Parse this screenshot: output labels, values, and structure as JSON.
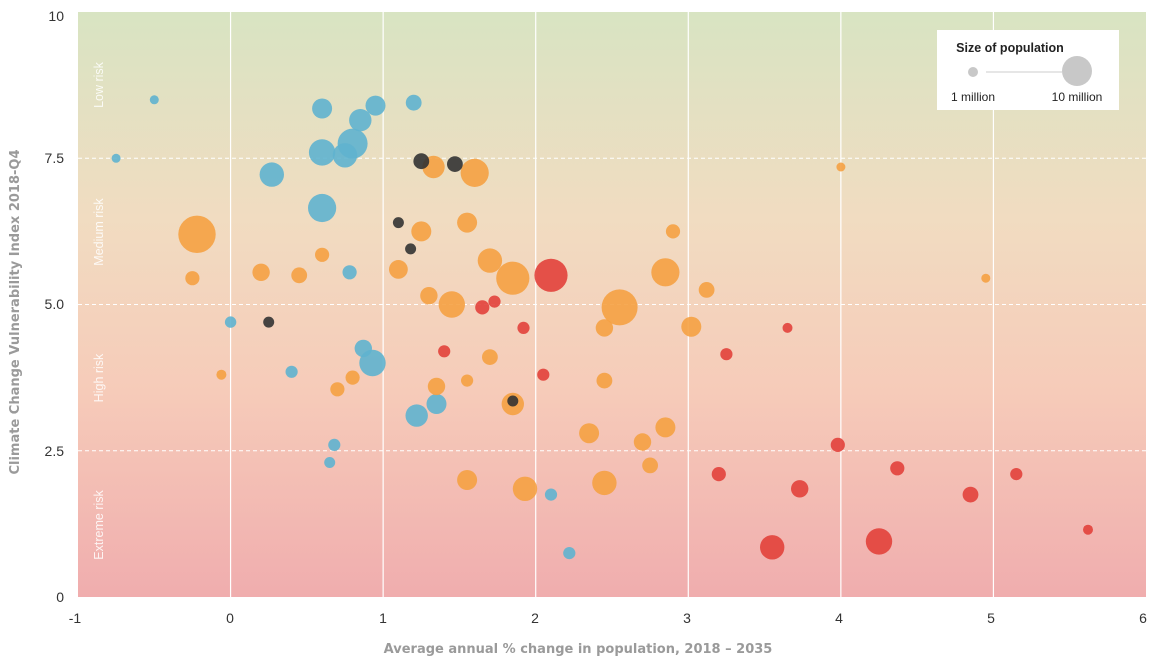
{
  "chart_data": {
    "type": "scatter",
    "title": "",
    "xlabel": "Average annual % change in population, 2018 – 2035",
    "ylabel": "Climate Change Vulnerability Index 2018-Q4",
    "xlim": [
      -1,
      6
    ],
    "ylim": [
      0,
      10
    ],
    "x_ticks": [
      "-1",
      "0",
      "1",
      "2",
      "3",
      "4",
      "5",
      "6"
    ],
    "y_ticks": [
      "0",
      "2.5",
      "5.0",
      "7.5",
      "10"
    ],
    "grid": true,
    "risk_bands": [
      {
        "label": "Low risk",
        "from": 7.5,
        "to": 10
      },
      {
        "label": "Medium risk",
        "from": 5.0,
        "to": 7.5
      },
      {
        "label": "High risk",
        "from": 2.5,
        "to": 5.0
      },
      {
        "label": "Extreme risk",
        "from": 0,
        "to": 2.5
      }
    ],
    "background_gradient": [
      "#d8e4c2",
      "#f1dcc1",
      "#f6cbb9",
      "#f0adae"
    ],
    "legend": {
      "title": "Size of population",
      "placement": "top-right",
      "items": [
        {
          "label": "1 million",
          "population_millions": 1
        },
        {
          "label": "10 million",
          "population_millions": 10
        }
      ]
    },
    "series_colors": {
      "blue": "#5fb2cf",
      "orange": "#f5a142",
      "red": "#e2413b",
      "black": "#333333"
    },
    "points": [
      {
        "x": -0.22,
        "y": 6.2,
        "pop": 14,
        "c": "orange"
      },
      {
        "x": -0.25,
        "y": 5.45,
        "pop": 2,
        "c": "orange"
      },
      {
        "x": 0.0,
        "y": 4.7,
        "pop": 1.3,
        "c": "blue"
      },
      {
        "x": -0.06,
        "y": 3.8,
        "pop": 1,
        "c": "orange"
      },
      {
        "x": 0.27,
        "y": 7.22,
        "pop": 6,
        "c": "blue"
      },
      {
        "x": 0.6,
        "y": 8.35,
        "pop": 4,
        "c": "blue"
      },
      {
        "x": 0.6,
        "y": 7.6,
        "pop": 7,
        "c": "blue"
      },
      {
        "x": 0.75,
        "y": 7.55,
        "pop": 6,
        "c": "blue"
      },
      {
        "x": 0.8,
        "y": 7.75,
        "pop": 9,
        "c": "blue"
      },
      {
        "x": 0.6,
        "y": 6.65,
        "pop": 8,
        "c": "blue"
      },
      {
        "x": 0.85,
        "y": 8.15,
        "pop": 5,
        "c": "blue"
      },
      {
        "x": 0.95,
        "y": 8.4,
        "pop": 4,
        "c": "blue"
      },
      {
        "x": 1.2,
        "y": 8.45,
        "pop": 2.5,
        "c": "blue"
      },
      {
        "x": 0.2,
        "y": 5.55,
        "pop": 3,
        "c": "orange"
      },
      {
        "x": 0.45,
        "y": 5.5,
        "pop": 2.5,
        "c": "orange"
      },
      {
        "x": 0.6,
        "y": 5.85,
        "pop": 2,
        "c": "orange"
      },
      {
        "x": 0.78,
        "y": 5.55,
        "pop": 2,
        "c": "blue"
      },
      {
        "x": 0.25,
        "y": 4.7,
        "pop": 1.2,
        "c": "black"
      },
      {
        "x": 0.93,
        "y": 4.0,
        "pop": 7,
        "c": "blue"
      },
      {
        "x": 0.87,
        "y": 4.25,
        "pop": 3,
        "c": "blue"
      },
      {
        "x": 0.8,
        "y": 3.75,
        "pop": 2,
        "c": "orange"
      },
      {
        "x": 0.7,
        "y": 3.55,
        "pop": 2,
        "c": "orange"
      },
      {
        "x": 0.4,
        "y": 3.85,
        "pop": 1.5,
        "c": "blue"
      },
      {
        "x": 0.68,
        "y": 2.6,
        "pop": 1.5,
        "c": "blue"
      },
      {
        "x": 0.65,
        "y": 2.3,
        "pop": 1.2,
        "c": "blue"
      },
      {
        "x": 1.22,
        "y": 3.1,
        "pop": 5,
        "c": "blue"
      },
      {
        "x": 1.35,
        "y": 3.3,
        "pop": 4,
        "c": "blue"
      },
      {
        "x": 1.35,
        "y": 3.6,
        "pop": 3,
        "c": "orange"
      },
      {
        "x": 1.25,
        "y": 7.45,
        "pop": 2.5,
        "c": "black"
      },
      {
        "x": 1.47,
        "y": 7.4,
        "pop": 2.5,
        "c": "black"
      },
      {
        "x": 1.33,
        "y": 7.35,
        "pop": 5,
        "c": "orange"
      },
      {
        "x": 1.6,
        "y": 7.25,
        "pop": 8,
        "c": "orange"
      },
      {
        "x": 1.1,
        "y": 6.4,
        "pop": 1.2,
        "c": "black"
      },
      {
        "x": 1.18,
        "y": 5.95,
        "pop": 1.2,
        "c": "black"
      },
      {
        "x": 1.25,
        "y": 6.25,
        "pop": 4,
        "c": "orange"
      },
      {
        "x": 1.55,
        "y": 6.4,
        "pop": 4,
        "c": "orange"
      },
      {
        "x": 1.1,
        "y": 5.6,
        "pop": 3.5,
        "c": "orange"
      },
      {
        "x": 1.3,
        "y": 5.15,
        "pop": 3,
        "c": "orange"
      },
      {
        "x": 1.45,
        "y": 5.0,
        "pop": 7,
        "c": "orange"
      },
      {
        "x": 1.7,
        "y": 5.75,
        "pop": 6,
        "c": "orange"
      },
      {
        "x": 1.85,
        "y": 5.45,
        "pop": 11,
        "c": "orange"
      },
      {
        "x": 2.1,
        "y": 5.5,
        "pop": 11,
        "c": "red"
      },
      {
        "x": 2.55,
        "y": 4.95,
        "pop": 13,
        "c": "orange"
      },
      {
        "x": 2.85,
        "y": 5.55,
        "pop": 8,
        "c": "orange"
      },
      {
        "x": 3.02,
        "y": 4.62,
        "pop": 4,
        "c": "orange"
      },
      {
        "x": 3.12,
        "y": 5.25,
        "pop": 2.5,
        "c": "orange"
      },
      {
        "x": 1.65,
        "y": 4.95,
        "pop": 2,
        "c": "red"
      },
      {
        "x": 1.73,
        "y": 5.05,
        "pop": 1.5,
        "c": "red"
      },
      {
        "x": 1.92,
        "y": 4.6,
        "pop": 1.5,
        "c": "red"
      },
      {
        "x": 1.4,
        "y": 4.2,
        "pop": 1.5,
        "c": "red"
      },
      {
        "x": 2.05,
        "y": 3.8,
        "pop": 1.5,
        "c": "red"
      },
      {
        "x": 1.85,
        "y": 3.3,
        "pop": 5,
        "c": "orange"
      },
      {
        "x": 1.85,
        "y": 3.35,
        "pop": 1.2,
        "c": "black"
      },
      {
        "x": 1.55,
        "y": 3.7,
        "pop": 1.5,
        "c": "orange"
      },
      {
        "x": 1.7,
        "y": 4.1,
        "pop": 2.5,
        "c": "orange"
      },
      {
        "x": 2.45,
        "y": 3.7,
        "pop": 2.5,
        "c": "orange"
      },
      {
        "x": 2.45,
        "y": 4.6,
        "pop": 3,
        "c": "orange"
      },
      {
        "x": 2.35,
        "y": 2.8,
        "pop": 4,
        "c": "orange"
      },
      {
        "x": 2.7,
        "y": 2.65,
        "pop": 3,
        "c": "orange"
      },
      {
        "x": 2.85,
        "y": 2.9,
        "pop": 4,
        "c": "orange"
      },
      {
        "x": 2.45,
        "y": 1.95,
        "pop": 6,
        "c": "orange"
      },
      {
        "x": 1.93,
        "y": 1.85,
        "pop": 6,
        "c": "orange"
      },
      {
        "x": 1.55,
        "y": 2.0,
        "pop": 4,
        "c": "orange"
      },
      {
        "x": 2.1,
        "y": 1.75,
        "pop": 1.5,
        "c": "blue"
      },
      {
        "x": 2.22,
        "y": 0.75,
        "pop": 1.5,
        "c": "blue"
      },
      {
        "x": 2.75,
        "y": 2.25,
        "pop": 2.5,
        "c": "orange"
      },
      {
        "x": 3.2,
        "y": 2.1,
        "pop": 2,
        "c": "red"
      },
      {
        "x": 3.25,
        "y": 4.15,
        "pop": 1.5,
        "c": "red"
      },
      {
        "x": 3.55,
        "y": 0.85,
        "pop": 6,
        "c": "red"
      },
      {
        "x": 3.73,
        "y": 1.85,
        "pop": 3,
        "c": "red"
      },
      {
        "x": 3.98,
        "y": 2.6,
        "pop": 2,
        "c": "red"
      },
      {
        "x": 4.25,
        "y": 0.95,
        "pop": 7,
        "c": "red"
      },
      {
        "x": 4.37,
        "y": 2.2,
        "pop": 2,
        "c": "red"
      },
      {
        "x": 4.85,
        "y": 1.75,
        "pop": 2.5,
        "c": "red"
      },
      {
        "x": 5.15,
        "y": 2.1,
        "pop": 1.5,
        "c": "red"
      },
      {
        "x": 5.62,
        "y": 1.15,
        "pop": 1,
        "c": "red"
      },
      {
        "x": 4.95,
        "y": 5.45,
        "pop": 0.8,
        "c": "orange"
      },
      {
        "x": 4.0,
        "y": 7.35,
        "pop": 0.8,
        "c": "orange"
      },
      {
        "x": 3.65,
        "y": 4.6,
        "pop": 1,
        "c": "red"
      },
      {
        "x": 2.9,
        "y": 6.25,
        "pop": 2,
        "c": "orange"
      },
      {
        "x": -0.5,
        "y": 8.5,
        "pop": 0.8,
        "c": "blue"
      },
      {
        "x": -0.75,
        "y": 7.5,
        "pop": 0.8,
        "c": "blue"
      }
    ]
  }
}
